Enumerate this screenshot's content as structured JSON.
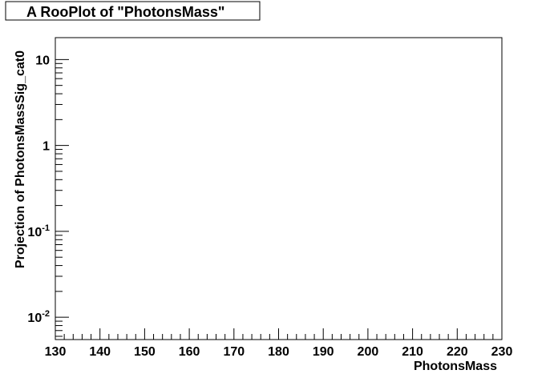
{
  "chart_data": {
    "type": "scatter",
    "title": "A RooPlot of \"PhotonsMass\"",
    "xlabel": "PhotonsMass",
    "ylabel": "Projection of PhotonsMassSig_cat0",
    "xlim": [
      130,
      230
    ],
    "ylim": [
      0.0055,
      18
    ],
    "y_scale": "log",
    "grid": false,
    "series": [],
    "x_ticks": [
      {
        "value": 130,
        "label": "130"
      },
      {
        "value": 140,
        "label": "140"
      },
      {
        "value": 150,
        "label": "150"
      },
      {
        "value": 160,
        "label": "160"
      },
      {
        "value": 170,
        "label": "170"
      },
      {
        "value": 180,
        "label": "180"
      },
      {
        "value": 190,
        "label": "190"
      },
      {
        "value": 200,
        "label": "200"
      },
      {
        "value": 210,
        "label": "210"
      },
      {
        "value": 220,
        "label": "220"
      },
      {
        "value": 230,
        "label": "230"
      }
    ],
    "y_ticks": [
      {
        "value": 0.01,
        "base": "10",
        "exp": "-2"
      },
      {
        "value": 0.1,
        "base": "10",
        "exp": "-1"
      },
      {
        "value": 1,
        "base": "1",
        "exp": ""
      },
      {
        "value": 10,
        "base": "10",
        "exp": ""
      }
    ]
  }
}
